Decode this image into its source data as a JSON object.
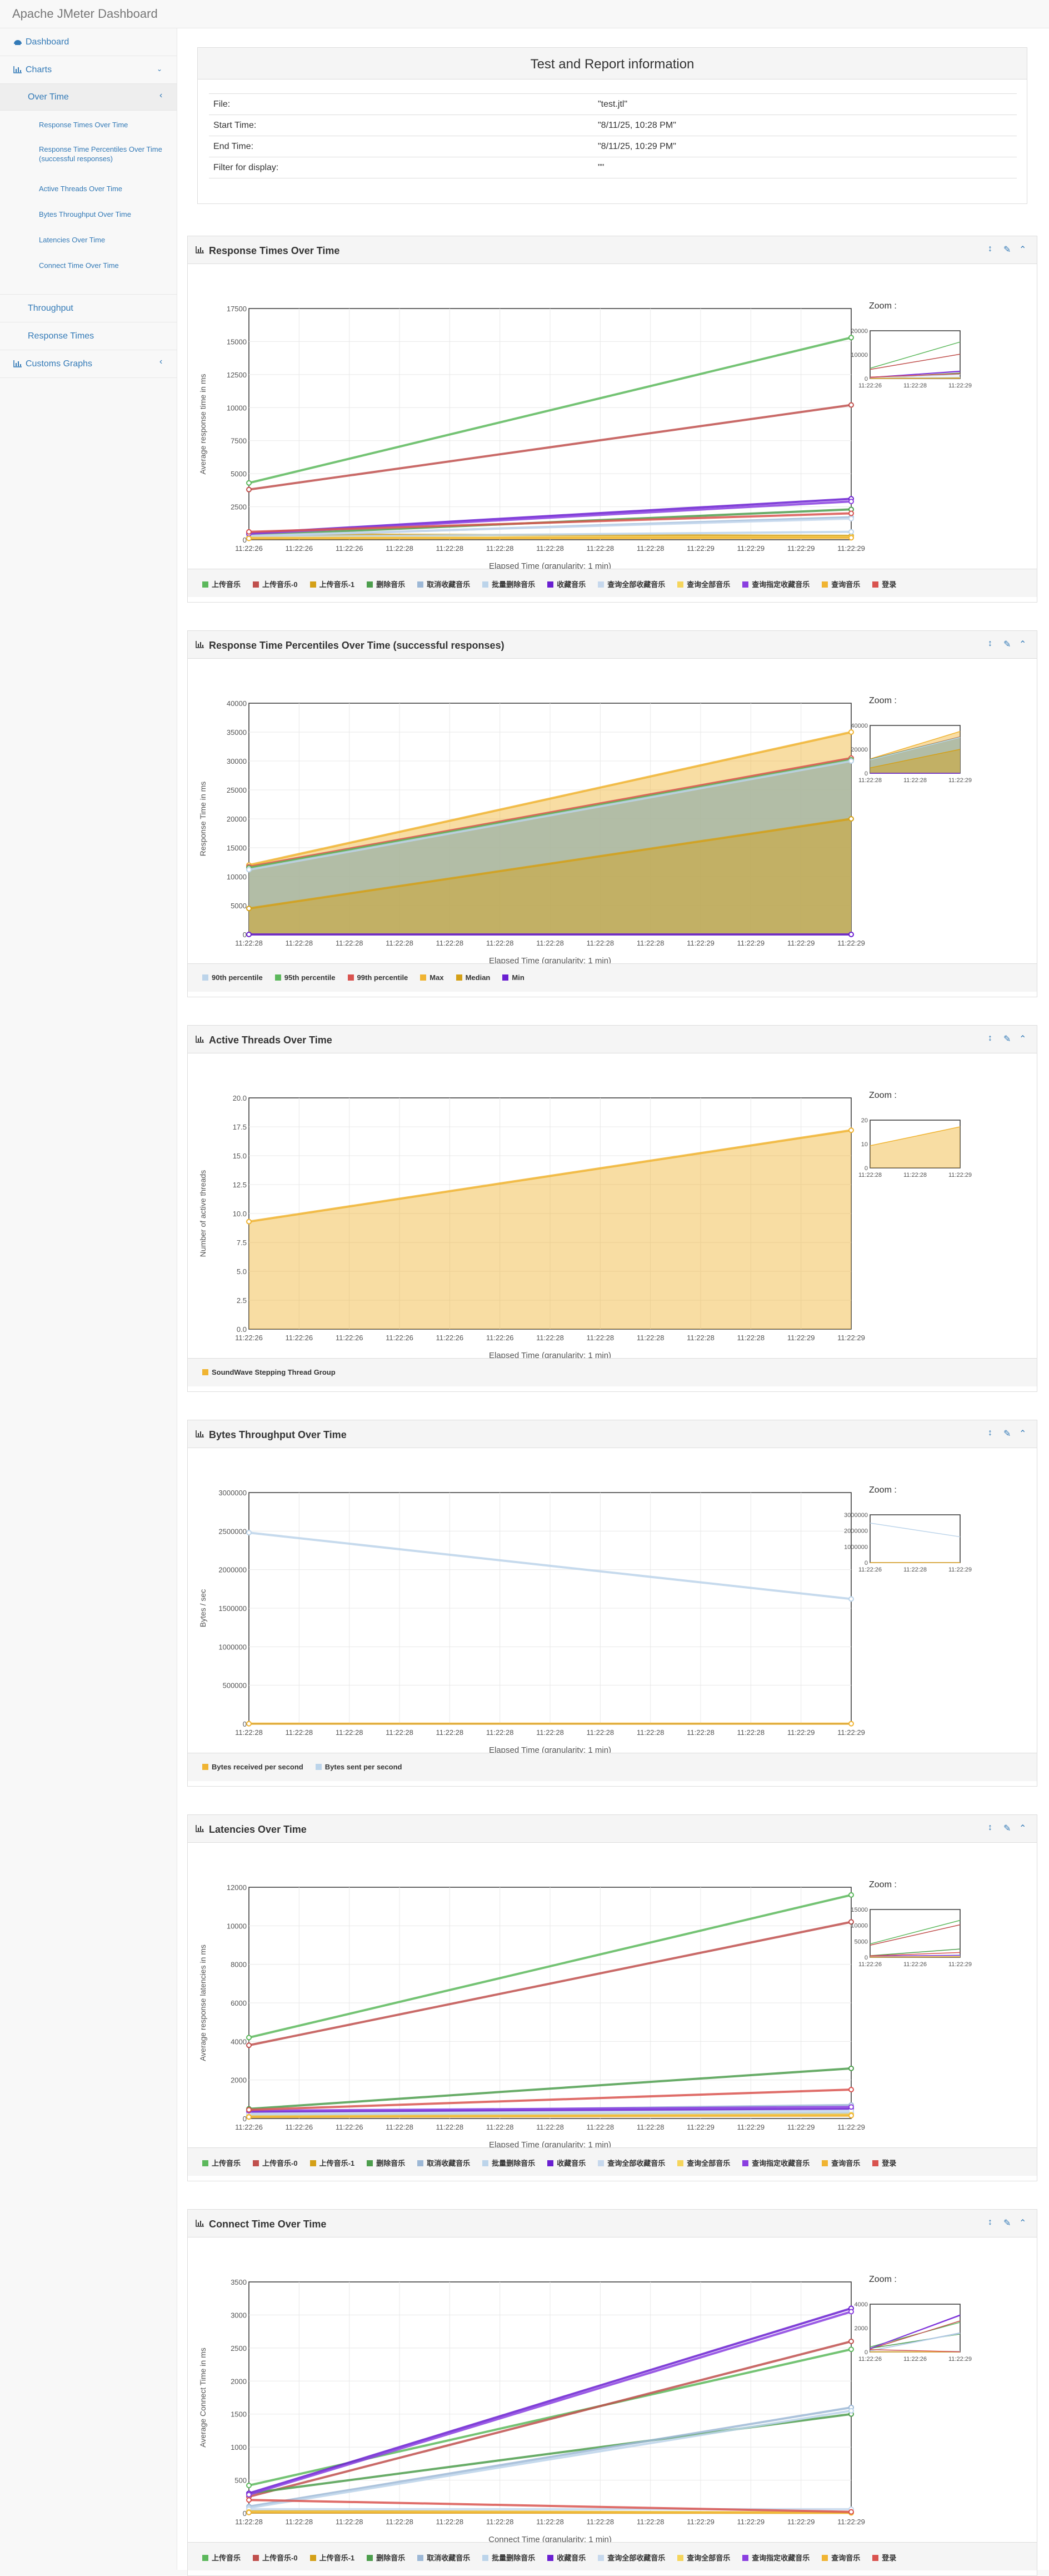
{
  "app": {
    "title": "Apache JMeter Dashboard"
  },
  "sidebar": {
    "dashboard": "Dashboard",
    "charts": "Charts",
    "over_time": "Over Time",
    "sub_items": [
      "Response Times Over Time",
      "Response Time Percentiles Over Time (successful responses)",
      "Active Threads Over Time",
      "Bytes Throughput Over Time",
      "Latencies Over Time",
      "Connect Time Over Time"
    ],
    "throughput": "Throughput",
    "response_times": "Response Times",
    "custom_graphs": "Customs Graphs"
  },
  "info": {
    "title": "Test and Report information",
    "rows": [
      {
        "label": "File:",
        "value": "\"test.jtl\""
      },
      {
        "label": "Start Time:",
        "value": "\"8/11/25, 10:28 PM\""
      },
      {
        "label": "End Time:",
        "value": "\"8/11/25, 10:29 PM\""
      },
      {
        "label": "Filter for display:",
        "value": "\"\""
      }
    ]
  },
  "zoom_label": "Zoom :",
  "colors": {
    "link": "#337ab7",
    "s1": "#5cb85c",
    "s2": "#c0504d",
    "s3": "#d4a017",
    "s4": "#4d9e4d",
    "s5": "#9db8d6",
    "s6": "#bcd4ea",
    "s7": "#6a1fd1",
    "s8": "#c6d8ed",
    "s9": "#f5d55c",
    "s10": "#8a3fe0",
    "s11": "#f0b432",
    "s12": "#d9534f"
  },
  "charts": [
    {
      "key": "rt",
      "title": "Response Times Over Time",
      "chart_data": {
        "type": "line",
        "title": "Response Times Over Time",
        "xlabel": "Elapsed Time (granularity: 1 min)",
        "ylabel": "Average response time in ms",
        "x": [
          "11:22:26",
          "11:22:29"
        ],
        "x_ticks": [
          "11:22:26",
          "11:22:26",
          "11:22:26",
          "11:22:28",
          "11:22:28",
          "11:22:28",
          "11:22:28",
          "11:22:28",
          "11:22:28",
          "11:22:29",
          "11:22:29",
          "11:22:29",
          "11:22:29"
        ],
        "y_ticks": [
          "0",
          "2500",
          "5000",
          "7500",
          "10000",
          "12500",
          "15000",
          "17500"
        ],
        "ylim": [
          0,
          17500
        ],
        "zoom_y_ticks": [
          "0",
          "10000",
          "20000"
        ],
        "zoom_x_ticks": [
          "11:22:26",
          "11:22:28",
          "11:22:29"
        ],
        "series": [
          {
            "name": "上传音乐",
            "color_key": "s1",
            "values": [
              4300,
              15300
            ]
          },
          {
            "name": "上传音乐-0",
            "color_key": "s2",
            "values": [
              3800,
              10200
            ]
          },
          {
            "name": "上传音乐-1",
            "color_key": "s3",
            "values": [
              400,
              300
            ]
          },
          {
            "name": "删除音乐",
            "color_key": "s4",
            "values": [
              350,
              2300
            ]
          },
          {
            "name": "取消收藏音乐",
            "color_key": "s5",
            "values": [
              250,
              1700
            ]
          },
          {
            "name": "批量删除音乐",
            "color_key": "s6",
            "values": [
              200,
              600
            ]
          },
          {
            "name": "收藏音乐",
            "color_key": "s7",
            "values": [
              500,
              3100
            ]
          },
          {
            "name": "查询全部收藏音乐",
            "color_key": "s8",
            "values": [
              300,
              1600
            ]
          },
          {
            "name": "查询全部音乐",
            "color_key": "s9",
            "values": [
              150,
              200
            ]
          },
          {
            "name": "查询指定收藏音乐",
            "color_key": "s10",
            "values": [
              450,
              2900
            ]
          },
          {
            "name": "查询音乐",
            "color_key": "s11",
            "values": [
              100,
              150
            ]
          },
          {
            "name": "登录",
            "color_key": "s12",
            "values": [
              600,
              2000
            ]
          }
        ]
      }
    },
    {
      "key": "rtp",
      "title": "Response Time Percentiles Over Time (successful responses)",
      "chart_data": {
        "type": "area",
        "title": "Response Time Percentiles Over Time (successful responses)",
        "xlabel": "Elapsed Time (granularity: 1 min)",
        "ylabel": "Response Time in ms",
        "x": [
          "11:22:26",
          "11:22:29"
        ],
        "x_ticks": [
          "11:22:28",
          "11:22:28",
          "11:22:28",
          "11:22:28",
          "11:22:28",
          "11:22:28",
          "11:22:28",
          "11:22:28",
          "11:22:28",
          "11:22:29",
          "11:22:29",
          "11:22:29",
          "11:22:29"
        ],
        "y_ticks": [
          "0",
          "5000",
          "10000",
          "15000",
          "20000",
          "25000",
          "30000",
          "35000",
          "40000"
        ],
        "ylim": [
          0,
          40000
        ],
        "zoom_y_ticks": [
          "0",
          "20000",
          "40000"
        ],
        "zoom_x_ticks": [
          "11:22:28",
          "11:22:28",
          "11:22:29"
        ],
        "series": [
          {
            "name": "90th percentile",
            "color_key": "s6",
            "values": [
              11200,
              30000
            ]
          },
          {
            "name": "95th percentile",
            "color_key": "s1",
            "values": [
              11500,
              30200
            ]
          },
          {
            "name": "99th percentile",
            "color_key": "s12",
            "values": [
              11700,
              30500
            ]
          },
          {
            "name": "Max",
            "color_key": "s11",
            "values": [
              12000,
              35000
            ]
          },
          {
            "name": "Median",
            "color_key": "s3",
            "values": [
              4500,
              20000
            ]
          },
          {
            "name": "Min",
            "color_key": "s7",
            "values": [
              0,
              0
            ]
          }
        ]
      }
    },
    {
      "key": "at",
      "title": "Active Threads Over Time",
      "chart_data": {
        "type": "area",
        "title": "Active Threads Over Time",
        "xlabel": "Elapsed Time (granularity: 1 min)",
        "ylabel": "Number of active threads",
        "x": [
          "11:22:26",
          "11:22:29"
        ],
        "x_ticks": [
          "11:22:26",
          "11:22:26",
          "11:22:26",
          "11:22:26",
          "11:22:26",
          "11:22:26",
          "11:22:28",
          "11:22:28",
          "11:22:28",
          "11:22:28",
          "11:22:28",
          "11:22:29",
          "11:22:29"
        ],
        "y_ticks": [
          "0.0",
          "2.5",
          "5.0",
          "7.5",
          "10.0",
          "12.5",
          "15.0",
          "17.5",
          "20.0"
        ],
        "ylim": [
          0,
          20
        ],
        "zoom_y_ticks": [
          "0",
          "10",
          "20"
        ],
        "zoom_x_ticks": [
          "11:22:28",
          "11:22:28",
          "11:22:29"
        ],
        "series": [
          {
            "name": "SoundWave Stepping Thread Group",
            "color_key": "s11",
            "values": [
              9.3,
              17.2
            ]
          }
        ]
      }
    },
    {
      "key": "bt",
      "title": "Bytes Throughput Over Time",
      "chart_data": {
        "type": "line",
        "title": "Bytes Throughput Over Time",
        "xlabel": "Elapsed Time (granularity: 1 min)",
        "ylabel": "Bytes / sec",
        "x": [
          "11:22:26",
          "11:22:29"
        ],
        "x_ticks": [
          "11:22:28",
          "11:22:28",
          "11:22:28",
          "11:22:28",
          "11:22:28",
          "11:22:28",
          "11:22:28",
          "11:22:28",
          "11:22:28",
          "11:22:28",
          "11:22:28",
          "11:22:29",
          "11:22:29"
        ],
        "y_ticks": [
          "0",
          "500000",
          "1000000",
          "1500000",
          "2000000",
          "2500000",
          "3000000"
        ],
        "ylim": [
          0,
          3000000
        ],
        "zoom_y_ticks": [
          "0",
          "1000000",
          "2000000",
          "3000000"
        ],
        "zoom_x_ticks": [
          "11:22:26",
          "11:22:28",
          "11:22:29"
        ],
        "series": [
          {
            "name": "Bytes received per second",
            "color_key": "s11",
            "values": [
              2000,
              2000
            ]
          },
          {
            "name": "Bytes sent per second",
            "color_key": "s6",
            "values": [
              2480000,
              1620000
            ]
          }
        ]
      }
    },
    {
      "key": "lat",
      "title": "Latencies Over Time",
      "chart_data": {
        "type": "line",
        "title": "Latencies Over Time",
        "xlabel": "Elapsed Time (granularity: 1 min)",
        "ylabel": "Average response latencies in ms",
        "x": [
          "11:22:26",
          "11:22:29"
        ],
        "x_ticks": [
          "11:22:26",
          "11:22:26",
          "11:22:26",
          "11:22:28",
          "11:22:28",
          "11:22:28",
          "11:22:28",
          "11:22:28",
          "11:22:28",
          "11:22:29",
          "11:22:29",
          "11:22:29",
          "11:22:29"
        ],
        "y_ticks": [
          "0",
          "2000",
          "4000",
          "6000",
          "8000",
          "10000",
          "12000"
        ],
        "ylim": [
          0,
          12000
        ],
        "zoom_y_ticks": [
          "0",
          "5000",
          "10000",
          "15000"
        ],
        "zoom_x_ticks": [
          "11:22:26",
          "11:22:26",
          "11:22:29"
        ],
        "series": [
          {
            "name": "上传音乐",
            "color_key": "s1",
            "values": [
              4200,
              11600
            ]
          },
          {
            "name": "上传音乐-0",
            "color_key": "s2",
            "values": [
              3800,
              10200
            ]
          },
          {
            "name": "上传音乐-1",
            "color_key": "s3",
            "values": [
              150,
              250
            ]
          },
          {
            "name": "删除音乐",
            "color_key": "s4",
            "values": [
              500,
              2600
            ]
          },
          {
            "name": "取消收藏音乐",
            "color_key": "s5",
            "values": [
              300,
              700
            ]
          },
          {
            "name": "批量删除音乐",
            "color_key": "s6",
            "values": [
              200,
              300
            ]
          },
          {
            "name": "收藏音乐",
            "color_key": "s7",
            "values": [
              350,
              500
            ]
          },
          {
            "name": "查询全部收藏音乐",
            "color_key": "s8",
            "values": [
              250,
              400
            ]
          },
          {
            "name": "查询全部音乐",
            "color_key": "s9",
            "values": [
              100,
              200
            ]
          },
          {
            "name": "查询指定收藏音乐",
            "color_key": "s10",
            "values": [
              400,
              600
            ]
          },
          {
            "name": "查询音乐",
            "color_key": "s11",
            "values": [
              80,
              150
            ]
          },
          {
            "name": "登录",
            "color_key": "s12",
            "values": [
              450,
              1500
            ]
          }
        ]
      }
    },
    {
      "key": "ct",
      "title": "Connect Time Over Time",
      "chart_data": {
        "type": "line",
        "title": "Connect Time Over Time",
        "xlabel": "Connect Time (granularity: 1 min)",
        "ylabel": "Average Connect Time in ms",
        "x": [
          "11:22:26",
          "11:22:29"
        ],
        "x_ticks": [
          "11:22:28",
          "11:22:28",
          "11:22:28",
          "11:22:28",
          "11:22:28",
          "11:22:28",
          "11:22:28",
          "11:22:28",
          "11:22:28",
          "11:22:29",
          "11:22:29",
          "11:22:29",
          "11:22:29"
        ],
        "y_ticks": [
          "0",
          "500",
          "1000",
          "1500",
          "2000",
          "2500",
          "3000",
          "3500"
        ],
        "ylim": [
          0,
          3500
        ],
        "zoom_y_ticks": [
          "0",
          "2000",
          "4000"
        ],
        "zoom_x_ticks": [
          "11:22:26",
          "11:22:26",
          "11:22:29"
        ],
        "series": [
          {
            "name": "上传音乐",
            "color_key": "s1",
            "values": [
              420,
              2480
            ]
          },
          {
            "name": "上传音乐-0",
            "color_key": "s2",
            "values": [
              250,
              2600
            ]
          },
          {
            "name": "上传音乐-1",
            "color_key": "s3",
            "values": [
              30,
              10
            ]
          },
          {
            "name": "删除音乐",
            "color_key": "s4",
            "values": [
              300,
              1500
            ]
          },
          {
            "name": "取消收藏音乐",
            "color_key": "s5",
            "values": [
              100,
              1600
            ]
          },
          {
            "name": "批量删除音乐",
            "color_key": "s6",
            "values": [
              80,
              1550
            ]
          },
          {
            "name": "收藏音乐",
            "color_key": "s7",
            "values": [
              300,
              3100
            ]
          },
          {
            "name": "查询全部收藏音乐",
            "color_key": "s8",
            "values": [
              60,
              60
            ]
          },
          {
            "name": "查询全部音乐",
            "color_key": "s9",
            "values": [
              20,
              10
            ]
          },
          {
            "name": "查询指定收藏音乐",
            "color_key": "s10",
            "values": [
              280,
              3050
            ]
          },
          {
            "name": "查询音乐",
            "color_key": "s11",
            "values": [
              10,
              5
            ]
          },
          {
            "name": "登录",
            "color_key": "s12",
            "values": [
              200,
              20
            ]
          }
        ]
      }
    }
  ]
}
